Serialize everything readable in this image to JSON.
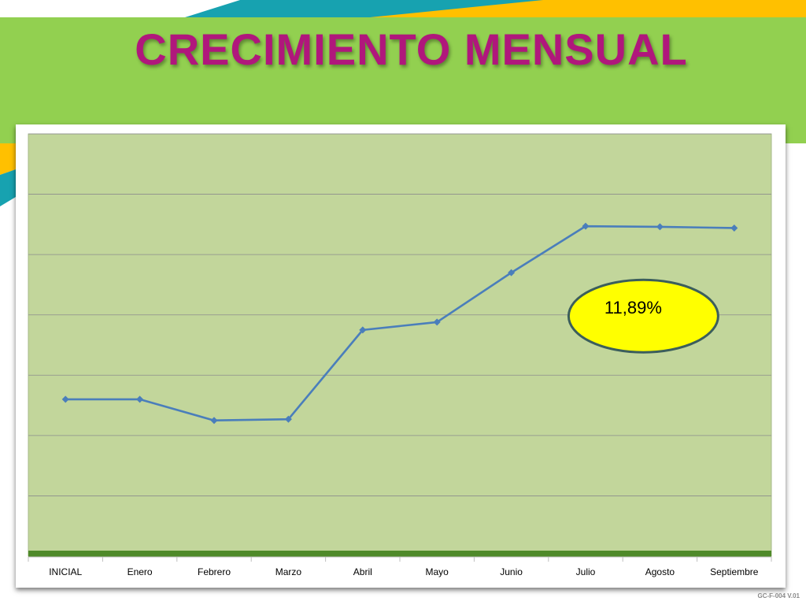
{
  "slide": {
    "title": "CRECIMIENTO MENSUAL",
    "footer": "GC-F-004 V.01"
  },
  "colors": {
    "banner": "#92d050",
    "title": "#b0177c",
    "teal": "#17a2b0",
    "gold": "#ffc000",
    "plot_bg": "#c2d69b",
    "line": "#4a7ebb",
    "callout_fill": "#ffff00",
    "callout_border": "#3b5e5c"
  },
  "chart_data": {
    "type": "line",
    "categories": [
      "INICIAL",
      "Enero",
      "Febrero",
      "Marzo",
      "Abril",
      "Mayo",
      "Junio",
      "Julio",
      "Agosto",
      "Septiembre"
    ],
    "series": [
      {
        "values": [
          2.6,
          2.6,
          2.25,
          2.27,
          3.75,
          3.88,
          4.7,
          5.47,
          5.46,
          5.44
        ]
      }
    ],
    "ylim": [
      0,
      7
    ],
    "grid": true,
    "annotations": [
      {
        "text": "11,89%",
        "category": "Agosto",
        "y": 3.98
      }
    ]
  }
}
